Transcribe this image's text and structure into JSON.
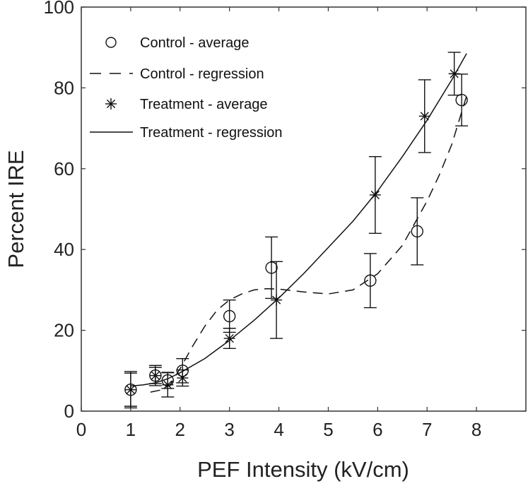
{
  "chart_data": {
    "type": "scatter",
    "title": "",
    "xlabel": "PEF Intensity (kV/cm)",
    "ylabel": "Percent IRE",
    "xlim": [
      0,
      9
    ],
    "ylim": [
      0,
      100
    ],
    "xticks": [
      "0",
      "1",
      "2",
      "3",
      "4",
      "5",
      "6",
      "7",
      "8"
    ],
    "yticks": [
      "0",
      "20",
      "40",
      "60",
      "80",
      "100"
    ],
    "grid": false,
    "legend_position": "top-left",
    "series": [
      {
        "name": "Control - average",
        "kind": "points",
        "marker": "circle",
        "x": [
          1,
          1.5,
          1.75,
          2.05,
          3,
          3.85,
          5.85,
          6.8,
          7.7
        ],
        "y": [
          5.3,
          8.8,
          7.6,
          10,
          23.5,
          35.5,
          32.3,
          44.5,
          77
        ],
        "err": [
          4.1,
          2.5,
          2,
          3,
          4,
          7.6,
          6.7,
          8.3,
          6.4
        ]
      },
      {
        "name": "Control - regression",
        "kind": "line",
        "style": "dashed",
        "x": [
          1.4,
          1.6,
          1.8,
          2,
          2.25,
          2.5,
          2.75,
          3,
          3.25,
          3.5,
          3.75,
          4,
          4.5,
          5,
          5.5,
          6,
          6.5,
          7,
          7.25,
          7.5,
          7.8
        ],
        "y": [
          4.7,
          5.2,
          6.5,
          10.5,
          16,
          21,
          25,
          27.5,
          29,
          30,
          30.3,
          30.2,
          29.5,
          29,
          30,
          34,
          41,
          52,
          58.5,
          66,
          78
        ]
      },
      {
        "name": "Treatment - average",
        "kind": "points",
        "marker": "star",
        "x": [
          1,
          1.5,
          1.75,
          2.05,
          3,
          3.95,
          5.95,
          6.95,
          7.55
        ],
        "y": [
          5.3,
          8.8,
          6.5,
          8.2,
          18,
          27.5,
          53.5,
          73,
          83.5
        ],
        "err": [
          4.5,
          2,
          3,
          2,
          2.5,
          9.5,
          9.5,
          9,
          5.3
        ]
      },
      {
        "name": "Treatment - regression",
        "kind": "line",
        "style": "solid",
        "x": [
          1,
          1.25,
          1.5,
          1.75,
          2,
          2.5,
          3,
          3.5,
          4,
          4.5,
          5,
          5.5,
          6,
          6.5,
          7,
          7.5,
          7.8
        ],
        "y": [
          6.2,
          6.5,
          7,
          8,
          9.5,
          13,
          17.5,
          22.5,
          28,
          34,
          40.5,
          47,
          54.5,
          63,
          72,
          82,
          88.5
        ]
      }
    ]
  }
}
